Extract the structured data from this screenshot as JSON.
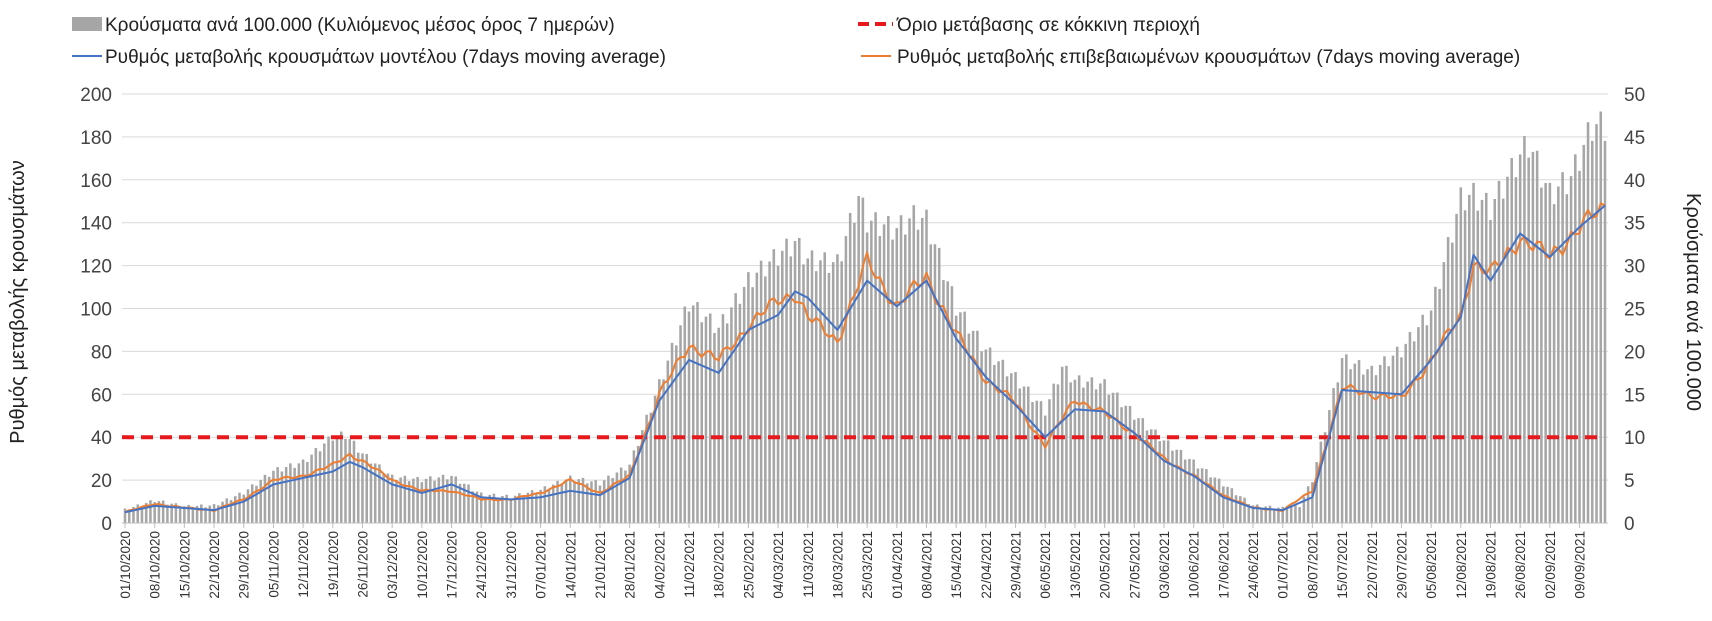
{
  "chart_data": {
    "type": "bar+line",
    "title": "",
    "colors": {
      "bars": "#a6a6a6",
      "model_line": "#4472c4",
      "confirmed_line": "#ed7d31",
      "threshold": "#e8191c",
      "grid": "#d9d9d9"
    },
    "y_left": {
      "label": "Ρυθμός μεταβολής κρουσμάτων",
      "lim": [
        0,
        200
      ],
      "ticks": [
        0,
        20,
        40,
        60,
        80,
        100,
        120,
        140,
        160,
        180,
        200
      ]
    },
    "y_right": {
      "label": "Κρούσματα ανά 100.000",
      "lim": [
        0,
        50
      ],
      "ticks": [
        0,
        5,
        10,
        15,
        20,
        25,
        30,
        35,
        40,
        45,
        50
      ]
    },
    "x_start_date": "2020-10-01",
    "x_end_date": "2021-09-15",
    "x_tick_labels": [
      "01/10/2020",
      "08/10/2020",
      "15/10/2020",
      "22/10/2020",
      "29/10/2020",
      "05/11/2020",
      "12/11/2020",
      "19/11/2020",
      "26/11/2020",
      "03/12/2020",
      "10/12/2020",
      "17/12/2020",
      "24/12/2020",
      "31/12/2020",
      "07/01/2021",
      "14/01/2021",
      "21/01/2021",
      "28/01/2021",
      "04/02/2021",
      "11/02/2021",
      "18/02/2021",
      "25/02/2021",
      "04/03/2021",
      "11/03/2021",
      "18/03/2021",
      "25/03/2021",
      "01/04/2021",
      "08/04/2021",
      "15/04/2021",
      "22/04/2021",
      "29/04/2021",
      "06/05/2021",
      "13/05/2021",
      "20/05/2021",
      "27/05/2021",
      "03/06/2021",
      "10/06/2021",
      "17/06/2021",
      "24/06/2021",
      "01/07/2021",
      "08/07/2021",
      "15/07/2021",
      "22/07/2021",
      "29/07/2021",
      "05/08/2021",
      "12/08/2021",
      "19/08/2021",
      "26/08/2021",
      "02/09/2021",
      "09/09/2021"
    ],
    "threshold": {
      "name": "Όριο μετάβασης σε κόκκινη περιοχή",
      "value": 40
    },
    "series": [
      {
        "name": "Κρούσματα ανά 100.000 (Κυλιόμενος μέσος όρος 7 ημερών)",
        "kind": "bar",
        "axis": "right",
        "points": [
          [
            "2020-10-01",
            1.5
          ],
          [
            "2020-10-08",
            2.6
          ],
          [
            "2020-10-15",
            1.9
          ],
          [
            "2020-10-22",
            2.0
          ],
          [
            "2020-10-29",
            3.5
          ],
          [
            "2020-11-05",
            6.0
          ],
          [
            "2020-11-12",
            7.0
          ],
          [
            "2020-11-19",
            10.0
          ],
          [
            "2020-11-22",
            10.2
          ],
          [
            "2020-11-26",
            8.0
          ],
          [
            "2020-12-03",
            5.3
          ],
          [
            "2020-12-10",
            5.0
          ],
          [
            "2020-12-17",
            5.4
          ],
          [
            "2020-12-24",
            3.3
          ],
          [
            "2020-12-31",
            3.0
          ],
          [
            "2021-01-07",
            3.8
          ],
          [
            "2021-01-14",
            5.2
          ],
          [
            "2021-01-21",
            4.6
          ],
          [
            "2021-01-28",
            6.7
          ],
          [
            "2021-02-04",
            16.0
          ],
          [
            "2021-02-11",
            25.5
          ],
          [
            "2021-02-18",
            22.5
          ],
          [
            "2021-02-25",
            28.0
          ],
          [
            "2021-03-04",
            31.0
          ],
          [
            "2021-03-08",
            32.5
          ],
          [
            "2021-03-11",
            30.5
          ],
          [
            "2021-03-18",
            30.0
          ],
          [
            "2021-03-23",
            37.7
          ],
          [
            "2021-03-25",
            35.0
          ],
          [
            "2021-04-01",
            34.0
          ],
          [
            "2021-04-05",
            35.5
          ],
          [
            "2021-04-08",
            35.0
          ],
          [
            "2021-04-15",
            25.0
          ],
          [
            "2021-04-22",
            20.0
          ],
          [
            "2021-04-29",
            16.8
          ],
          [
            "2021-05-06",
            13.0
          ],
          [
            "2021-05-10",
            18.0
          ],
          [
            "2021-05-13",
            16.5
          ],
          [
            "2021-05-20",
            16.0
          ],
          [
            "2021-05-27",
            12.5
          ],
          [
            "2021-06-03",
            9.5
          ],
          [
            "2021-06-10",
            7.0
          ],
          [
            "2021-06-17",
            4.5
          ],
          [
            "2021-06-24",
            2.0
          ],
          [
            "2021-07-01",
            1.7
          ],
          [
            "2021-07-05",
            2.0
          ],
          [
            "2021-07-08",
            5.0
          ],
          [
            "2021-07-15",
            19.0
          ],
          [
            "2021-07-22",
            17.5
          ],
          [
            "2021-07-29",
            20.0
          ],
          [
            "2021-08-05",
            24.5
          ],
          [
            "2021-08-12",
            37.5
          ],
          [
            "2021-08-15",
            38.0
          ],
          [
            "2021-08-19",
            36.5
          ],
          [
            "2021-08-26",
            42.5
          ],
          [
            "2021-08-28",
            44.0
          ],
          [
            "2021-09-02",
            38.0
          ],
          [
            "2021-09-07",
            40.0
          ],
          [
            "2021-09-12",
            46.0
          ],
          [
            "2021-09-15",
            46.0
          ]
        ]
      },
      {
        "name": "Ρυθμός μεταβολής κρουσμάτων μοντέλου (7days moving average)",
        "kind": "line",
        "axis": "left",
        "points": [
          [
            "2020-10-01",
            5
          ],
          [
            "2020-10-08",
            8
          ],
          [
            "2020-10-15",
            7
          ],
          [
            "2020-10-22",
            6
          ],
          [
            "2020-10-29",
            10
          ],
          [
            "2020-11-05",
            18
          ],
          [
            "2020-11-12",
            21
          ],
          [
            "2020-11-19",
            24
          ],
          [
            "2020-11-23",
            28.5
          ],
          [
            "2020-11-26",
            26
          ],
          [
            "2020-12-03",
            18
          ],
          [
            "2020-12-10",
            14
          ],
          [
            "2020-12-17",
            18
          ],
          [
            "2020-12-24",
            12
          ],
          [
            "2020-12-31",
            11
          ],
          [
            "2021-01-07",
            12
          ],
          [
            "2021-01-14",
            15
          ],
          [
            "2021-01-21",
            13
          ],
          [
            "2021-01-28",
            21
          ],
          [
            "2021-02-04",
            57
          ],
          [
            "2021-02-11",
            76
          ],
          [
            "2021-02-18",
            70
          ],
          [
            "2021-02-25",
            90
          ],
          [
            "2021-03-04",
            97
          ],
          [
            "2021-03-08",
            108
          ],
          [
            "2021-03-11",
            105
          ],
          [
            "2021-03-18",
            90
          ],
          [
            "2021-03-25",
            113
          ],
          [
            "2021-04-01",
            101
          ],
          [
            "2021-04-08",
            113
          ],
          [
            "2021-04-15",
            86
          ],
          [
            "2021-04-22",
            68
          ],
          [
            "2021-04-29",
            55
          ],
          [
            "2021-05-06",
            40
          ],
          [
            "2021-05-13",
            53
          ],
          [
            "2021-05-20",
            52
          ],
          [
            "2021-05-27",
            42
          ],
          [
            "2021-06-03",
            29
          ],
          [
            "2021-06-10",
            22
          ],
          [
            "2021-06-17",
            12
          ],
          [
            "2021-06-24",
            7
          ],
          [
            "2021-07-01",
            6
          ],
          [
            "2021-07-08",
            12
          ],
          [
            "2021-07-15",
            62
          ],
          [
            "2021-07-22",
            61
          ],
          [
            "2021-07-29",
            60
          ],
          [
            "2021-08-05",
            76
          ],
          [
            "2021-08-12",
            96
          ],
          [
            "2021-08-15",
            125
          ],
          [
            "2021-08-19",
            113
          ],
          [
            "2021-08-26",
            135
          ],
          [
            "2021-09-02",
            124
          ],
          [
            "2021-09-09",
            138
          ],
          [
            "2021-09-15",
            148
          ]
        ]
      },
      {
        "name": "Ρυθμός μεταβολής επιβεβαιωμένων κρουσμάτων (7days moving average)",
        "kind": "line",
        "axis": "left",
        "points": [
          [
            "2020-10-01",
            5
          ],
          [
            "2020-10-08",
            9
          ],
          [
            "2020-10-15",
            7
          ],
          [
            "2020-10-22",
            6
          ],
          [
            "2020-10-29",
            11
          ],
          [
            "2020-11-05",
            20
          ],
          [
            "2020-11-12",
            22
          ],
          [
            "2020-11-19",
            27
          ],
          [
            "2020-11-23",
            32
          ],
          [
            "2020-11-26",
            29
          ],
          [
            "2020-12-03",
            20
          ],
          [
            "2020-12-10",
            15
          ],
          [
            "2020-12-17",
            15
          ],
          [
            "2020-12-24",
            11
          ],
          [
            "2020-12-31",
            11
          ],
          [
            "2021-01-07",
            14
          ],
          [
            "2021-01-14",
            20
          ],
          [
            "2021-01-21",
            14
          ],
          [
            "2021-01-28",
            22
          ],
          [
            "2021-02-04",
            60
          ],
          [
            "2021-02-11",
            83
          ],
          [
            "2021-02-18",
            76
          ],
          [
            "2021-02-25",
            92
          ],
          [
            "2021-03-04",
            104
          ],
          [
            "2021-03-08",
            107
          ],
          [
            "2021-03-11",
            96
          ],
          [
            "2021-03-18",
            85
          ],
          [
            "2021-03-25",
            122
          ],
          [
            "2021-04-01",
            101
          ],
          [
            "2021-04-08",
            115
          ],
          [
            "2021-04-15",
            88
          ],
          [
            "2021-04-22",
            67
          ],
          [
            "2021-04-29",
            56
          ],
          [
            "2021-05-06",
            36
          ],
          [
            "2021-05-13",
            58
          ],
          [
            "2021-05-20",
            51
          ],
          [
            "2021-05-27",
            42
          ],
          [
            "2021-06-03",
            30
          ],
          [
            "2021-06-10",
            22
          ],
          [
            "2021-06-17",
            13
          ],
          [
            "2021-06-24",
            7
          ],
          [
            "2021-07-01",
            6
          ],
          [
            "2021-07-08",
            15
          ],
          [
            "2021-07-15",
            63
          ],
          [
            "2021-07-22",
            60
          ],
          [
            "2021-07-29",
            58
          ],
          [
            "2021-08-05",
            76
          ],
          [
            "2021-08-12",
            97
          ],
          [
            "2021-08-15",
            121
          ],
          [
            "2021-08-19",
            116
          ],
          [
            "2021-08-26",
            133
          ],
          [
            "2021-09-02",
            124
          ],
          [
            "2021-09-09",
            138
          ],
          [
            "2021-09-15",
            147
          ]
        ]
      }
    ],
    "legend_position": "top"
  }
}
